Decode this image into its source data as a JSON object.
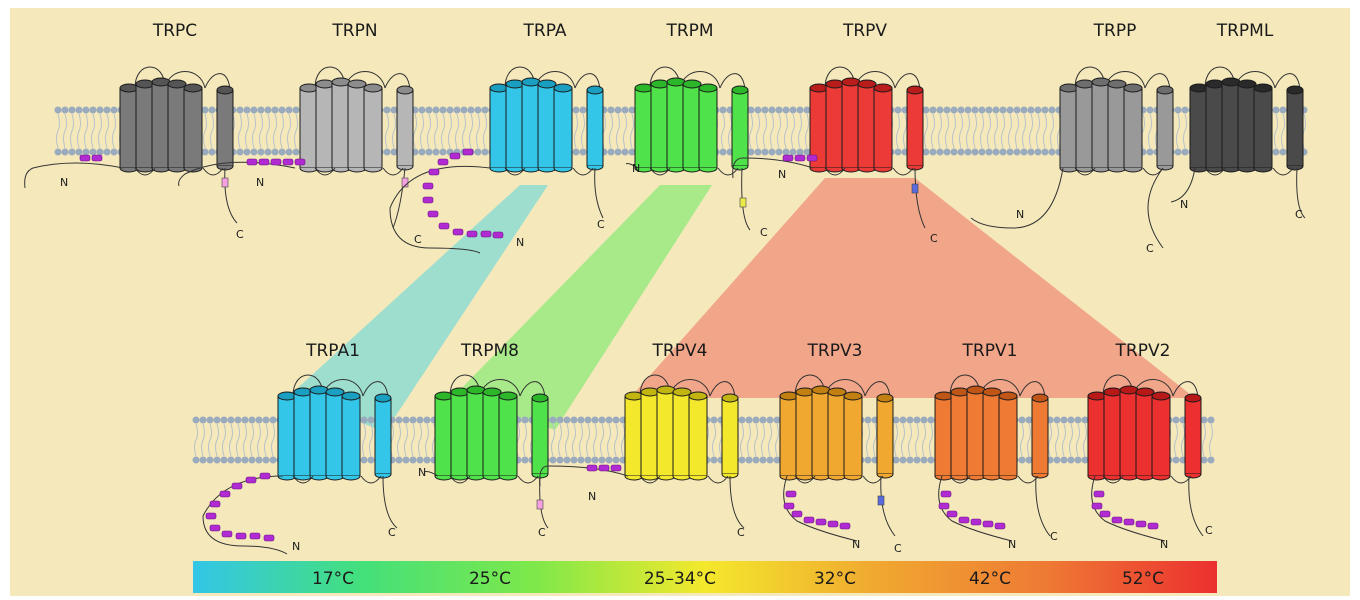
{
  "colors": {
    "background": "#f5e9bc",
    "membrane_head": "#9aabbd",
    "ankyrin": "#b02bd1",
    "connector": "#333333"
  },
  "families": [
    {
      "label": "TRPC",
      "color": "#7a7a7a",
      "dark": "#555555",
      "n_term": "N",
      "c_term": "C"
    },
    {
      "label": "TRPN",
      "color": "#b6b6b6",
      "dark": "#8c8c8c",
      "n_term": "N",
      "c_term": "C"
    },
    {
      "label": "TRPA",
      "color": "#33c6e8",
      "dark": "#1a9fc0",
      "n_term": "N",
      "c_term": "C"
    },
    {
      "label": "TRPM",
      "color": "#4fe24a",
      "dark": "#2cb62a",
      "n_term": "N",
      "c_term": "C"
    },
    {
      "label": "TRPV",
      "color": "#ec3a36",
      "dark": "#b91d1b",
      "n_term": "N",
      "c_term": "C"
    },
    {
      "label": "TRPP",
      "color": "#999999",
      "dark": "#6e6e6e",
      "n_term": "N",
      "c_term": "C"
    },
    {
      "label": "TRPML",
      "color": "#4a4a4a",
      "dark": "#2a2a2a",
      "n_term": "N",
      "c_term": "C"
    }
  ],
  "thermo_channels": [
    {
      "label": "TRPA1",
      "color": "#33c6e8",
      "dark": "#1a9fc0",
      "n_term": "N",
      "c_term": "C"
    },
    {
      "label": "TRPM8",
      "color": "#4fe24a",
      "dark": "#2cb62a",
      "n_term": "N",
      "c_term": "C"
    },
    {
      "label": "TRPV4",
      "color": "#f4e82c",
      "dark": "#c2b512",
      "n_term": "N",
      "c_term": "C"
    },
    {
      "label": "TRPV3",
      "color": "#f0a830",
      "dark": "#c27f12",
      "n_term": "N",
      "c_term": "C"
    },
    {
      "label": "TRPV1",
      "color": "#ee7a34",
      "dark": "#c05518",
      "n_term": "N",
      "c_term": "C"
    },
    {
      "label": "TRPV2",
      "color": "#ec2f2f",
      "dark": "#b71818",
      "n_term": "N",
      "c_term": "C"
    }
  ],
  "projections": [
    {
      "from": "TRPA",
      "to": "TRPA1",
      "color": "#7fd9d6"
    },
    {
      "from": "TRPM",
      "to": "TRPM8",
      "color": "#8ee87a"
    },
    {
      "from": "TRPV",
      "to": "TRPV4–TRPV2",
      "color": "#ef8f7a"
    }
  ],
  "temperature_scale": {
    "labels": [
      "17°C",
      "25°C",
      "25–34°C",
      "32°C",
      "42°C",
      "52°C"
    ],
    "gradient": [
      "#33c6e8",
      "#44e07a",
      "#7ee84a",
      "#f4e82c",
      "#f0a830",
      "#ee7a34",
      "#ec2f2f"
    ]
  }
}
